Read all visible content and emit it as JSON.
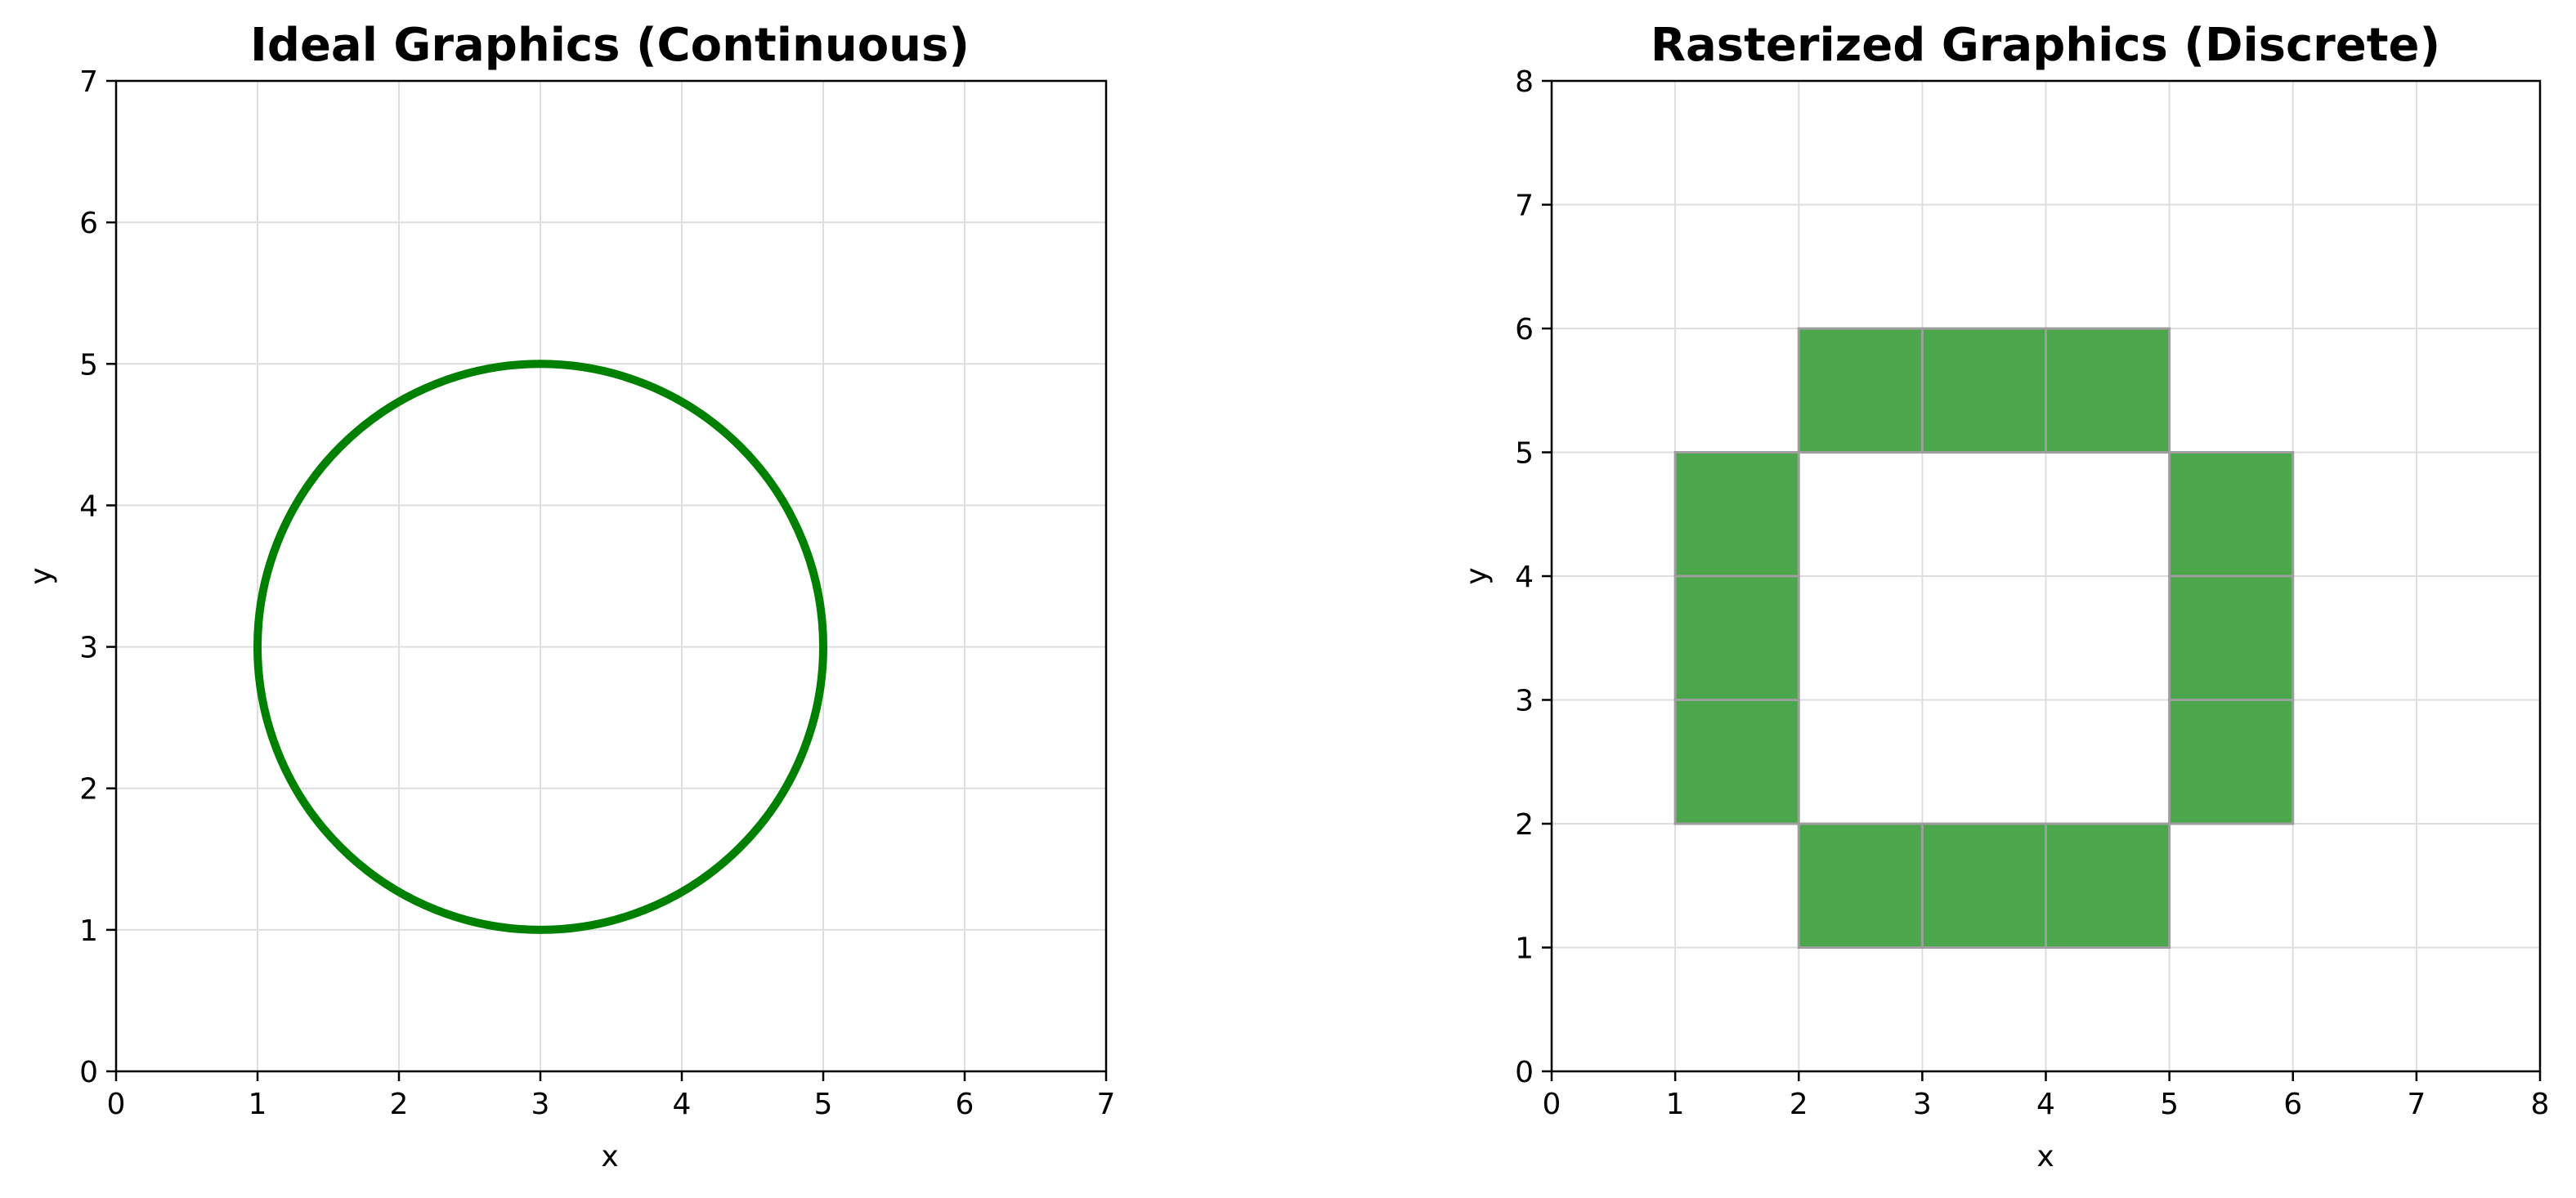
{
  "chart_data": [
    {
      "type": "line",
      "title": "Ideal Graphics (Continuous)",
      "xlabel": "x",
      "ylabel": "y",
      "xlim": [
        0,
        7
      ],
      "ylim": [
        0,
        7
      ],
      "xticks": [
        0,
        1,
        2,
        3,
        4,
        5,
        6,
        7
      ],
      "yticks": [
        0,
        1,
        2,
        3,
        4,
        5,
        6,
        7
      ],
      "grid": true,
      "shape": "circle",
      "center": [
        3,
        3
      ],
      "radius": 2,
      "color": "#008000"
    },
    {
      "type": "heatmap",
      "title": "Rasterized Graphics (Discrete)",
      "xlabel": "x",
      "ylabel": "y",
      "xlim": [
        0,
        8
      ],
      "ylim": [
        0,
        8
      ],
      "xticks": [
        0,
        1,
        2,
        3,
        4,
        5,
        6,
        7,
        8
      ],
      "yticks": [
        0,
        1,
        2,
        3,
        4,
        5,
        6,
        7,
        8
      ],
      "grid": true,
      "cell_color": "#4ca64c",
      "cell_edge_color": "#9e9e9e",
      "cells": [
        [
          2,
          5
        ],
        [
          3,
          5
        ],
        [
          4,
          5
        ],
        [
          1,
          4
        ],
        [
          5,
          4
        ],
        [
          1,
          3
        ],
        [
          5,
          3
        ],
        [
          1,
          2
        ],
        [
          5,
          2
        ],
        [
          2,
          1
        ],
        [
          3,
          1
        ],
        [
          4,
          1
        ]
      ]
    }
  ]
}
